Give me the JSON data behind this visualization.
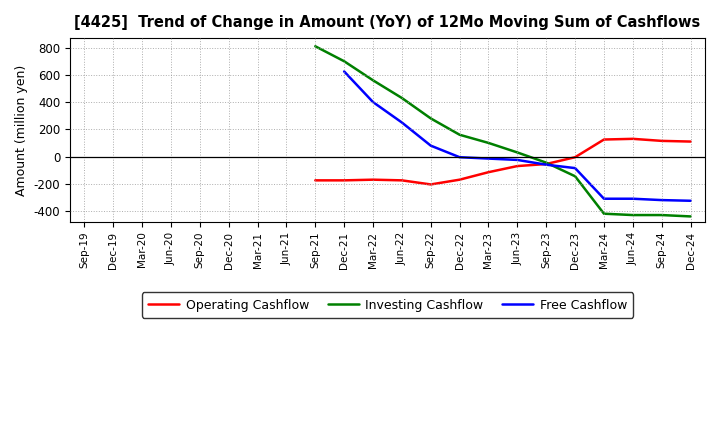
{
  "title": "[4425]  Trend of Change in Amount (YoY) of 12Mo Moving Sum of Cashflows",
  "ylabel": "Amount (million yen)",
  "x_labels": [
    "Sep-19",
    "Dec-19",
    "Mar-20",
    "Jun-20",
    "Sep-20",
    "Dec-20",
    "Mar-21",
    "Jun-21",
    "Sep-21",
    "Dec-21",
    "Mar-22",
    "Jun-22",
    "Sep-22",
    "Dec-22",
    "Mar-23",
    "Jun-23",
    "Sep-23",
    "Dec-23",
    "Mar-24",
    "Jun-24",
    "Sep-24",
    "Dec-24"
  ],
  "operating": {
    "x_indices": [
      8,
      9,
      10,
      11,
      12,
      13,
      14,
      15,
      16,
      17,
      18,
      19,
      20,
      21
    ],
    "y": [
      -175,
      -175,
      -170,
      -175,
      -205,
      -170,
      -115,
      -70,
      -55,
      -5,
      125,
      130,
      115,
      110
    ]
  },
  "investing": {
    "x_indices": [
      8,
      9,
      10,
      11,
      12,
      13,
      14,
      15,
      16,
      17,
      18,
      19,
      20,
      21
    ],
    "y": [
      810,
      700,
      560,
      430,
      280,
      160,
      100,
      30,
      -45,
      -145,
      -420,
      -430,
      -430,
      -440
    ]
  },
  "free": {
    "x_indices": [
      9,
      10,
      11,
      12,
      13,
      14,
      15,
      16,
      17,
      18,
      19,
      20,
      21
    ],
    "y": [
      625,
      400,
      250,
      80,
      -5,
      -15,
      -25,
      -60,
      -85,
      -310,
      -310,
      -320,
      -325
    ]
  },
  "colors": {
    "operating": "#ff0000",
    "investing": "#008000",
    "free": "#0000ff"
  },
  "ylim": [
    -480,
    870
  ],
  "yticks": [
    -400,
    -200,
    0,
    200,
    400,
    600,
    800
  ],
  "background_color": "#ffffff",
  "grid_color": "#999999",
  "line_width": 1.8
}
